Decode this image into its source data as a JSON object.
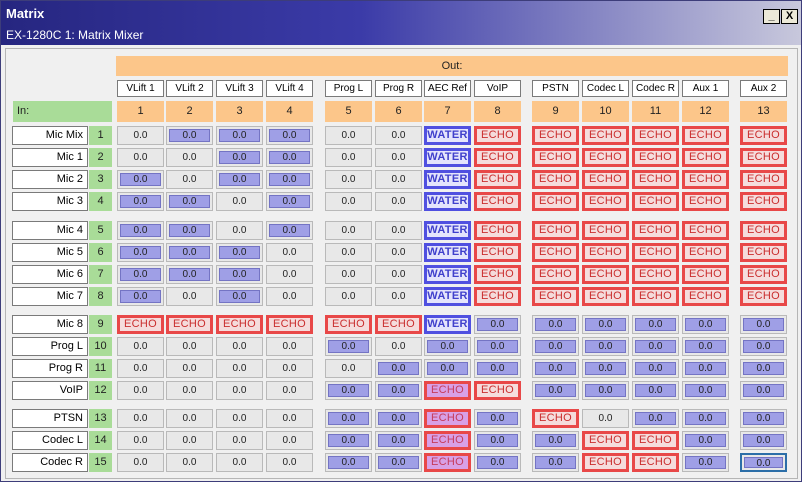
{
  "window": {
    "title": "Matrix",
    "subtitle": "EX-1280C 1: Matrix Mixer",
    "minimize_glyph": "_",
    "close_glyph": "X"
  },
  "matrix": {
    "out_label": "Out:",
    "in_label": "In:",
    "columns": [
      {
        "name": "VLift 1",
        "num": "1"
      },
      {
        "name": "VLift 2",
        "num": "2"
      },
      {
        "name": "VLift 3",
        "num": "3"
      },
      {
        "name": "VLift 4",
        "num": "4"
      },
      {
        "name": "Prog L",
        "num": "5"
      },
      {
        "name": "Prog R",
        "num": "6"
      },
      {
        "name": "AEC Ref",
        "num": "7"
      },
      {
        "name": "VoIP",
        "num": "8"
      },
      {
        "name": "PSTN",
        "num": "9"
      },
      {
        "name": "Codec L",
        "num": "10"
      },
      {
        "name": "Codec R",
        "num": "11"
      },
      {
        "name": "Aux 1",
        "num": "12"
      },
      {
        "name": "Aux 2",
        "num": "13"
      }
    ],
    "rows": [
      {
        "name": "Mic Mix",
        "num": "1",
        "cells": [
          "0.0",
          "0.0",
          "0.0",
          "0.0",
          "0.0",
          "0.0",
          "WATER",
          "ECHO",
          "ECHO",
          "ECHO",
          "ECHO",
          "ECHO",
          "ECHO"
        ],
        "state": "0111000000000"
      },
      {
        "name": "Mic 1",
        "num": "2",
        "cells": [
          "0.0",
          "0.0",
          "0.0",
          "0.0",
          "0.0",
          "0.0",
          "WATER",
          "ECHO",
          "ECHO",
          "ECHO",
          "ECHO",
          "ECHO",
          "ECHO"
        ],
        "state": "0011000000000"
      },
      {
        "name": "Mic 2",
        "num": "3",
        "cells": [
          "0.0",
          "0.0",
          "0.0",
          "0.0",
          "0.0",
          "0.0",
          "WATER",
          "ECHO",
          "ECHO",
          "ECHO",
          "ECHO",
          "ECHO",
          "ECHO"
        ],
        "state": "1011000000000"
      },
      {
        "name": "Mic 3",
        "num": "4",
        "cells": [
          "0.0",
          "0.0",
          "0.0",
          "0.0",
          "0.0",
          "0.0",
          "WATER",
          "ECHO",
          "ECHO",
          "ECHO",
          "ECHO",
          "ECHO",
          "ECHO"
        ],
        "state": "1101000000000"
      },
      {
        "name": "Mic 4",
        "num": "5",
        "cells": [
          "0.0",
          "0.0",
          "0.0",
          "0.0",
          "0.0",
          "0.0",
          "WATER",
          "ECHO",
          "ECHO",
          "ECHO",
          "ECHO",
          "ECHO",
          "ECHO"
        ],
        "state": "1101000000000"
      },
      {
        "name": "Mic 5",
        "num": "6",
        "cells": [
          "0.0",
          "0.0",
          "0.0",
          "0.0",
          "0.0",
          "0.0",
          "WATER",
          "ECHO",
          "ECHO",
          "ECHO",
          "ECHO",
          "ECHO",
          "ECHO"
        ],
        "state": "1110000000000"
      },
      {
        "name": "Mic 6",
        "num": "7",
        "cells": [
          "0.0",
          "0.0",
          "0.0",
          "0.0",
          "0.0",
          "0.0",
          "WATER",
          "ECHO",
          "ECHO",
          "ECHO",
          "ECHO",
          "ECHO",
          "ECHO"
        ],
        "state": "1110000000000"
      },
      {
        "name": "Mic 7",
        "num": "8",
        "cells": [
          "0.0",
          "0.0",
          "0.0",
          "0.0",
          "0.0",
          "0.0",
          "WATER",
          "ECHO",
          "ECHO",
          "ECHO",
          "ECHO",
          "ECHO",
          "ECHO"
        ],
        "state": "1010000000000"
      },
      {
        "name": "Mic 8",
        "num": "9",
        "cells": [
          "ECHO",
          "ECHO",
          "ECHO",
          "ECHO",
          "ECHO",
          "ECHO",
          "WATER",
          "0.0",
          "0.0",
          "0.0",
          "0.0",
          "0.0",
          "0.0"
        ],
        "state": "0000000111111"
      },
      {
        "name": "Prog L",
        "num": "10",
        "cells": [
          "0.0",
          "0.0",
          "0.0",
          "0.0",
          "0.0",
          "0.0",
          "0.0",
          "0.0",
          "0.0",
          "0.0",
          "0.0",
          "0.0",
          "0.0"
        ],
        "state": "0000101111111"
      },
      {
        "name": "Prog R",
        "num": "11",
        "cells": [
          "0.0",
          "0.0",
          "0.0",
          "0.0",
          "0.0",
          "0.0",
          "0.0",
          "0.0",
          "0.0",
          "0.0",
          "0.0",
          "0.0",
          "0.0"
        ],
        "state": "0000011111111"
      },
      {
        "name": "VoIP",
        "num": "12",
        "cells": [
          "0.0",
          "0.0",
          "0.0",
          "0.0",
          "0.0",
          "0.0",
          "ECHO",
          "ECHO",
          "0.0",
          "0.0",
          "0.0",
          "0.0",
          "0.0"
        ],
        "state": "0000110011111"
      },
      {
        "name": "PTSN",
        "num": "13",
        "cells": [
          "0.0",
          "0.0",
          "0.0",
          "0.0",
          "0.0",
          "0.0",
          "ECHO",
          "0.0",
          "ECHO",
          "0.0",
          "0.0",
          "0.0",
          "0.0"
        ],
        "state": "0000110100111"
      },
      {
        "name": "Codec L",
        "num": "14",
        "cells": [
          "0.0",
          "0.0",
          "0.0",
          "0.0",
          "0.0",
          "0.0",
          "ECHO",
          "0.0",
          "0.0",
          "ECHO",
          "ECHO",
          "0.0",
          "0.0"
        ],
        "state": "0000110110011"
      },
      {
        "name": "Codec R",
        "num": "15",
        "cells": [
          "0.0",
          "0.0",
          "0.0",
          "0.0",
          "0.0",
          "0.0",
          "ECHO",
          "0.0",
          "0.0",
          "ECHO",
          "ECHO",
          "0.0",
          "0.0"
        ],
        "state": "0000110110011"
      }
    ]
  },
  "colors": {
    "header_orange": "#fcc68a",
    "input_green": "#a9dc98",
    "gain_on": "#9f9fe6",
    "echo_red": "#e84848",
    "water_blue": "#5050e0"
  }
}
